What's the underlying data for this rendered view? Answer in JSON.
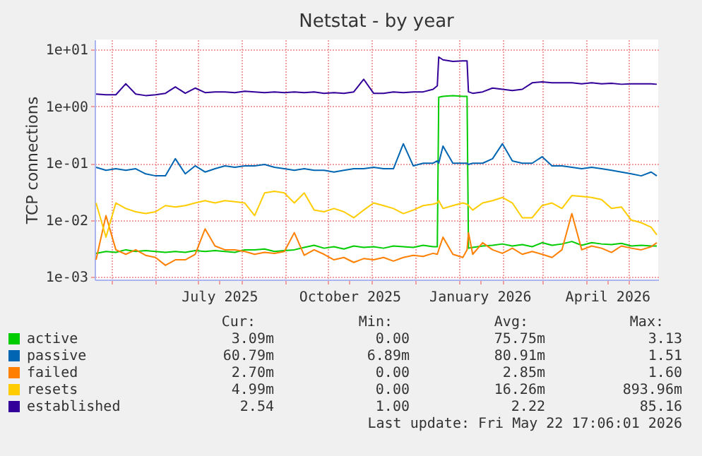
{
  "chart_data": {
    "type": "line",
    "title": "Netstat - by year",
    "ylabel": "TCP connections",
    "x": [
      "2025-04-20",
      "2025-04-27",
      "2025-05-04",
      "2025-05-11",
      "2025-05-18",
      "2025-05-25",
      "2025-06-01",
      "2025-06-08",
      "2025-06-15",
      "2025-06-22",
      "2025-06-29",
      "2025-07-06",
      "2025-07-13",
      "2025-07-20",
      "2025-07-27",
      "2025-08-03",
      "2025-08-10",
      "2025-08-17",
      "2025-08-24",
      "2025-08-31",
      "2025-09-07",
      "2025-09-14",
      "2025-09-21",
      "2025-09-28",
      "2025-10-05",
      "2025-10-12",
      "2025-10-19",
      "2025-10-26",
      "2025-11-02",
      "2025-11-09",
      "2025-11-16",
      "2025-11-23",
      "2025-11-30",
      "2025-12-07",
      "2025-12-14",
      "2025-12-17",
      "2025-12-18",
      "2025-12-21",
      "2025-12-28",
      "2026-01-04",
      "2026-01-07",
      "2026-01-08",
      "2026-01-11",
      "2026-01-18",
      "2026-01-25",
      "2026-02-01",
      "2026-02-08",
      "2026-02-15",
      "2026-02-22",
      "2026-03-01",
      "2026-03-08",
      "2026-03-15",
      "2026-03-22",
      "2026-03-29",
      "2026-04-05",
      "2026-04-12",
      "2026-04-19",
      "2026-04-26",
      "2026-05-03",
      "2026-05-10",
      "2026-05-17",
      "2026-05-21"
    ],
    "series": [
      {
        "name": "active",
        "color": "#00cc00",
        "values": [
          0.0026,
          0.0028,
          0.0027,
          0.003,
          0.0028,
          0.0029,
          0.0028,
          0.0027,
          0.0028,
          0.0027,
          0.0029,
          0.0028,
          0.0029,
          0.0028,
          0.0027,
          0.003,
          0.003,
          0.0031,
          0.0028,
          0.0029,
          0.003,
          0.0033,
          0.0036,
          0.0032,
          0.0034,
          0.0031,
          0.0035,
          0.0033,
          0.0034,
          0.0032,
          0.0035,
          0.0034,
          0.0033,
          0.0036,
          0.0034,
          0.0034,
          1.45,
          1.5,
          1.55,
          1.5,
          1.5,
          0.0032,
          0.0033,
          0.0035,
          0.0036,
          0.0038,
          0.0035,
          0.0037,
          0.0034,
          0.004,
          0.0036,
          0.0038,
          0.0042,
          0.0036,
          0.004,
          0.0038,
          0.0037,
          0.0039,
          0.0035,
          0.0036,
          0.0035,
          0.0035
        ]
      },
      {
        "name": "passive",
        "color": "#0066b3",
        "values": [
          0.085,
          0.075,
          0.08,
          0.075,
          0.08,
          0.065,
          0.06,
          0.06,
          0.12,
          0.065,
          0.09,
          0.07,
          0.08,
          0.09,
          0.085,
          0.09,
          0.09,
          0.095,
          0.085,
          0.08,
          0.075,
          0.08,
          0.075,
          0.075,
          0.07,
          0.075,
          0.08,
          0.08,
          0.085,
          0.08,
          0.08,
          0.22,
          0.09,
          0.1,
          0.1,
          0.11,
          0.1,
          0.2,
          0.1,
          0.1,
          0.1,
          0.095,
          0.1,
          0.1,
          0.12,
          0.22,
          0.11,
          0.1,
          0.1,
          0.13,
          0.09,
          0.09,
          0.085,
          0.08,
          0.085,
          0.08,
          0.075,
          0.07,
          0.065,
          0.06,
          0.07,
          0.06
        ]
      },
      {
        "name": "failed",
        "color": "#ff8000",
        "values": [
          0.002,
          0.012,
          0.003,
          0.0025,
          0.003,
          0.0024,
          0.0022,
          0.0016,
          0.002,
          0.002,
          0.0025,
          0.007,
          0.0035,
          0.003,
          0.003,
          0.0028,
          0.0025,
          0.0027,
          0.0026,
          0.0028,
          0.006,
          0.0024,
          0.003,
          0.0025,
          0.002,
          0.0022,
          0.0018,
          0.0021,
          0.002,
          0.0022,
          0.0019,
          0.0022,
          0.0024,
          0.0023,
          0.0026,
          0.0025,
          0.003,
          0.005,
          0.0025,
          0.0022,
          0.003,
          0.006,
          0.0025,
          0.004,
          0.003,
          0.0026,
          0.0032,
          0.0025,
          0.0028,
          0.0025,
          0.0022,
          0.003,
          0.013,
          0.003,
          0.0035,
          0.0032,
          0.0027,
          0.0035,
          0.0032,
          0.003,
          0.0034,
          0.004
        ]
      },
      {
        "name": "resets",
        "color": "#ffcc00",
        "values": [
          0.02,
          0.005,
          0.02,
          0.016,
          0.014,
          0.013,
          0.014,
          0.018,
          0.017,
          0.018,
          0.02,
          0.022,
          0.02,
          0.022,
          0.021,
          0.02,
          0.012,
          0.03,
          0.032,
          0.03,
          0.02,
          0.03,
          0.015,
          0.014,
          0.016,
          0.014,
          0.011,
          0.015,
          0.02,
          0.018,
          0.016,
          0.013,
          0.015,
          0.018,
          0.019,
          0.02,
          0.022,
          0.016,
          0.018,
          0.02,
          0.019,
          0.018,
          0.015,
          0.02,
          0.022,
          0.025,
          0.02,
          0.011,
          0.011,
          0.018,
          0.02,
          0.016,
          0.027,
          0.026,
          0.025,
          0.023,
          0.016,
          0.017,
          0.01,
          0.009,
          0.0075,
          0.0055
        ]
      },
      {
        "name": "established",
        "color": "#330099",
        "values": [
          1.65,
          1.6,
          1.6,
          2.5,
          1.65,
          1.55,
          1.6,
          1.7,
          2.2,
          1.7,
          2.1,
          1.75,
          1.8,
          1.8,
          1.75,
          1.85,
          1.8,
          1.75,
          1.8,
          1.75,
          1.8,
          1.75,
          1.8,
          1.7,
          1.75,
          1.7,
          1.8,
          3.0,
          1.7,
          1.7,
          1.8,
          1.75,
          1.8,
          1.8,
          2.0,
          2.3,
          7.4,
          6.6,
          6.2,
          6.3,
          6.3,
          1.8,
          1.7,
          1.8,
          2.1,
          2.0,
          1.9,
          2.0,
          2.6,
          2.7,
          2.6,
          2.6,
          2.6,
          2.5,
          2.6,
          2.5,
          2.55,
          2.45,
          2.5,
          2.5,
          2.5,
          2.45
        ]
      }
    ],
    "xlim": [
      "2025-04-19",
      "2026-05-22"
    ],
    "xticks": [
      {
        "value": "2025-05-01",
        "label": null
      },
      {
        "value": "2025-06-01",
        "label": null
      },
      {
        "value": "2025-07-01",
        "label": null
      },
      {
        "value": "2025-07-16",
        "label": "July 2025"
      },
      {
        "value": "2025-08-01",
        "label": null
      },
      {
        "value": "2025-09-01",
        "label": null
      },
      {
        "value": "2025-10-01",
        "label": null
      },
      {
        "value": "2025-10-16",
        "label": "October 2025"
      },
      {
        "value": "2025-11-01",
        "label": null
      },
      {
        "value": "2025-12-01",
        "label": null
      },
      {
        "value": "2026-01-01",
        "label": null
      },
      {
        "value": "2026-01-16",
        "label": "January 2026"
      },
      {
        "value": "2026-02-01",
        "label": null
      },
      {
        "value": "2026-03-01",
        "label": null
      },
      {
        "value": "2026-04-01",
        "label": null
      },
      {
        "value": "2026-04-16",
        "label": "April 2026"
      },
      {
        "value": "2026-05-01",
        "label": null
      }
    ],
    "ylim": [
      0.0009,
      15
    ],
    "yticks": [
      {
        "value": 0.001,
        "label": "1e-03"
      },
      {
        "value": 0.01,
        "label": "1e-02"
      },
      {
        "value": 0.1,
        "label": "1e-01"
      },
      {
        "value": 1,
        "label": "1e+00"
      },
      {
        "value": 10,
        "label": "1e+01"
      }
    ],
    "log": true,
    "grid": true,
    "legend": "bottom",
    "line_style": "solid",
    "marker": "none",
    "annotations": [
      "Cur:",
      "Min:",
      "Avg:",
      "Max:",
      "3.09m",
      "0.00",
      "75.75m",
      "3.13",
      "60.79m",
      "6.89m",
      "80.91m",
      "1.51",
      "2.70m",
      "0.00",
      "2.85m",
      "1.60",
      "4.99m",
      "0.00",
      "16.26m",
      "893.96m",
      "2.54",
      "1.00",
      "2.22",
      "85.16",
      "Last update: Fri May 22 17:06:01 2026"
    ]
  }
}
